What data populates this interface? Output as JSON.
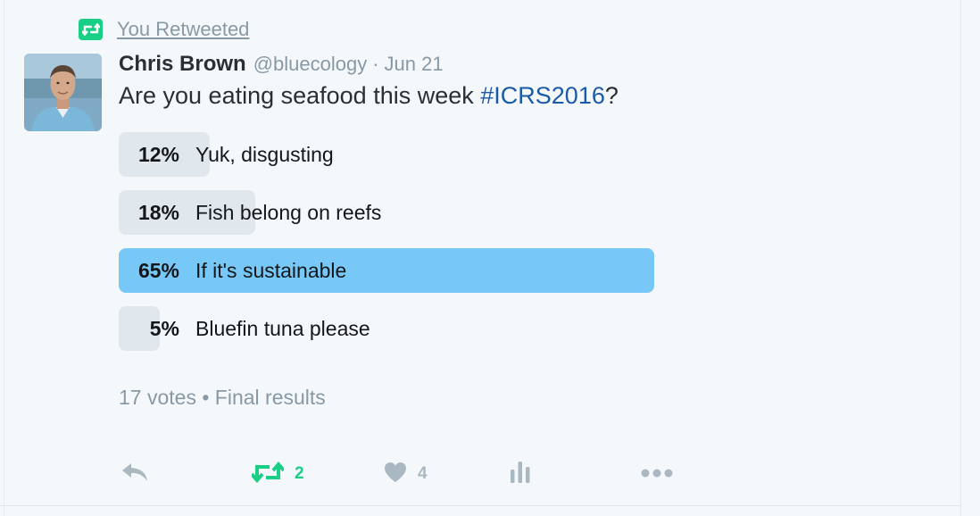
{
  "context": {
    "retweet_label": "You Retweeted"
  },
  "tweet": {
    "author_name": "Chris Brown",
    "author_handle": "@bluecology",
    "separator": "·",
    "date": "Jun 21",
    "text_prefix": "Are you eating seafood this week ",
    "hashtag": "#ICRS2016",
    "text_suffix": "?"
  },
  "poll": {
    "options": [
      {
        "percent": "12%",
        "value": 12,
        "label": "Yuk, disgusting",
        "winner": false
      },
      {
        "percent": "18%",
        "value": 18,
        "label": "Fish belong on reefs",
        "winner": false
      },
      {
        "percent": "65%",
        "value": 65,
        "label": "If it's sustainable",
        "winner": true
      },
      {
        "percent": "5%",
        "value": 5,
        "label": "Bluefin tuna please",
        "winner": false
      }
    ],
    "votes": "17 votes",
    "meta_separator": "•",
    "status": "Final results"
  },
  "actions": {
    "reply_icon": "reply-icon",
    "retweet_icon": "retweet-icon",
    "retweet_count": "2",
    "like_icon": "heart-icon",
    "like_count": "4",
    "analytics_icon": "analytics-icon",
    "more_icon": "more-icon"
  },
  "colors": {
    "retweet_green": "#19cf86",
    "poll_winner": "#77c7f7",
    "poll_bar": "#e1e8ed",
    "hashtag_blue": "#1b5aa8",
    "muted": "#8899a6",
    "icon_gray": "#aab8c2"
  }
}
